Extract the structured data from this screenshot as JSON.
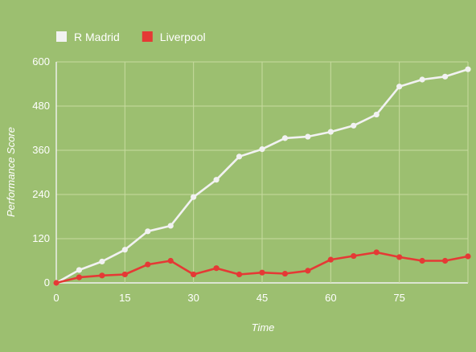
{
  "chart_data": {
    "type": "line",
    "xlabel": "Time",
    "ylabel": "Performance Score",
    "xlim": [
      0,
      90
    ],
    "ylim": [
      0,
      600
    ],
    "xticks": [
      "0",
      "15",
      "30",
      "45",
      "60",
      "75"
    ],
    "yticks": [
      "0",
      "120",
      "240",
      "360",
      "480",
      "600"
    ],
    "grid": true,
    "legend_position": "top-left",
    "x": [
      0,
      5,
      10,
      15,
      20,
      25,
      30,
      35,
      40,
      45,
      50,
      55,
      60,
      65,
      70,
      75,
      80,
      85,
      90
    ],
    "series": [
      {
        "name": "R Madrid",
        "color": "#f2f2f2",
        "values": [
          0,
          35,
          58,
          90,
          140,
          155,
          233,
          280,
          343,
          363,
          393,
          397,
          410,
          427,
          457,
          533,
          552,
          560,
          580
        ]
      },
      {
        "name": "Liverpool",
        "color": "#e53935",
        "values": [
          0,
          15,
          20,
          23,
          50,
          60,
          23,
          40,
          23,
          28,
          25,
          33,
          63,
          73,
          83,
          70,
          60,
          60,
          72
        ]
      }
    ]
  }
}
